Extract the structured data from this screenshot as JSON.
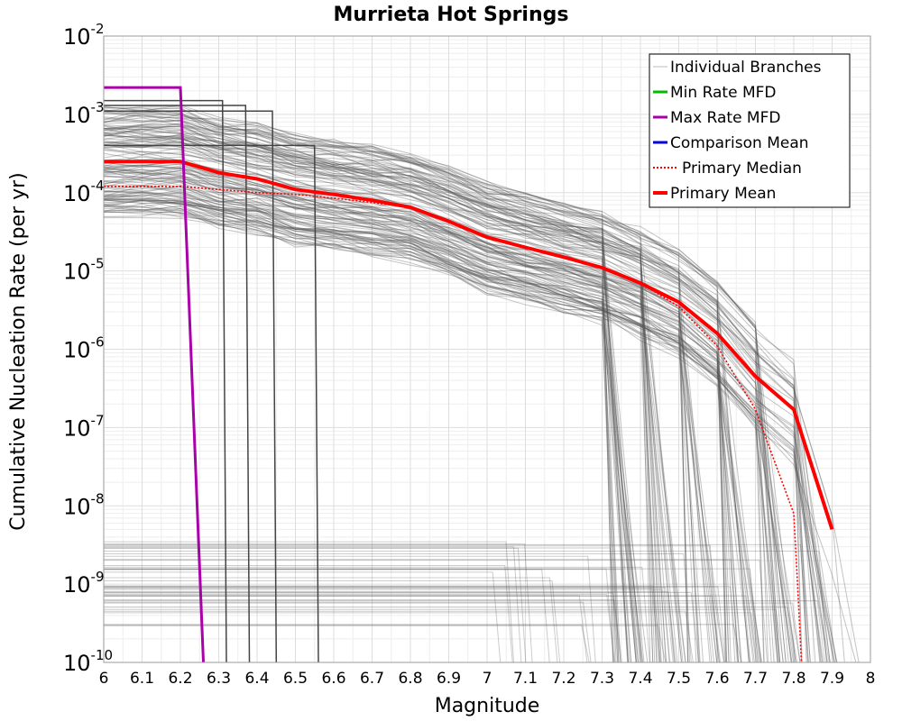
{
  "chart_data": {
    "type": "line",
    "title": "Murrieta Hot Springs",
    "xlabel": "Magnitude",
    "ylabel": "Cumulative Nucleation Rate (per yr)",
    "xlim": [
      6,
      8
    ],
    "ylim_log10": [
      -10,
      -2
    ],
    "x_ticks": [
      "6",
      "6.1",
      "6.2",
      "6.3",
      "6.4",
      "6.5",
      "6.6",
      "6.7",
      "6.8",
      "6.9",
      "7",
      "7.1",
      "7.2",
      "7.3",
      "7.4",
      "7.5",
      "7.6",
      "7.7",
      "7.8",
      "7.9",
      "8"
    ],
    "y_ticks": [
      {
        "base": "10",
        "exp": "-2"
      },
      {
        "base": "10",
        "exp": "-3"
      },
      {
        "base": "10",
        "exp": "-4"
      },
      {
        "base": "10",
        "exp": "-5"
      },
      {
        "base": "10",
        "exp": "-6"
      },
      {
        "base": "10",
        "exp": "-7"
      },
      {
        "base": "10",
        "exp": "-8"
      },
      {
        "base": "10",
        "exp": "-9"
      },
      {
        "base": "10",
        "exp": "-10"
      }
    ],
    "legend": {
      "position": "top-right",
      "entries": [
        {
          "label": "Individual Branches",
          "color": "#bbbbbb",
          "style": "solid-thin"
        },
        {
          "label": "Min Rate MFD",
          "color": "#00bb00",
          "style": "solid"
        },
        {
          "label": "Max Rate MFD",
          "color": "#aa00aa",
          "style": "solid"
        },
        {
          "label": "Comparison Mean",
          "color": "#0000dd",
          "style": "solid"
        },
        {
          "label": "Primary Median",
          "color": "#ff0000",
          "style": "dotted"
        },
        {
          "label": "Primary Mean",
          "color": "#ff0000",
          "style": "solid-thick"
        }
      ]
    },
    "series": [
      {
        "name": "Primary Mean",
        "color": "#ff0000",
        "x": [
          6.0,
          6.2,
          6.3,
          6.4,
          6.5,
          6.6,
          6.7,
          6.8,
          6.9,
          7.0,
          7.1,
          7.2,
          7.3,
          7.4,
          7.5,
          7.6,
          7.7,
          7.8,
          7.9
        ],
        "y": [
          0.00025,
          0.00025,
          0.00018,
          0.00015,
          0.00011,
          9.5e-05,
          8e-05,
          6.5e-05,
          4.3e-05,
          2.7e-05,
          2e-05,
          1.5e-05,
          1.1e-05,
          7e-06,
          4e-06,
          1.6e-06,
          4.5e-07,
          1.7e-07,
          5e-09
        ]
      },
      {
        "name": "Primary Median",
        "color": "#ff0000",
        "x": [
          6.0,
          6.2,
          6.3,
          6.4,
          6.5,
          6.6,
          6.7,
          6.8,
          6.9,
          7.0,
          7.1,
          7.2,
          7.3,
          7.4,
          7.5,
          7.6,
          7.7,
          7.8,
          7.81,
          7.82
        ],
        "y": [
          0.00012,
          0.00012,
          0.00011,
          0.0001,
          9.5e-05,
          8.5e-05,
          7.5e-05,
          6.5e-05,
          4.3e-05,
          2.7e-05,
          2e-05,
          1.5e-05,
          1.1e-05,
          7e-06,
          3.5e-06,
          1.1e-06,
          1.7e-07,
          8e-09,
          1e-09,
          1e-10
        ]
      },
      {
        "name": "Max Rate MFD",
        "color": "#aa00aa",
        "x": [
          6.0,
          6.2,
          6.26
        ],
        "y": [
          0.0022,
          0.0022,
          1e-10
        ]
      }
    ]
  }
}
